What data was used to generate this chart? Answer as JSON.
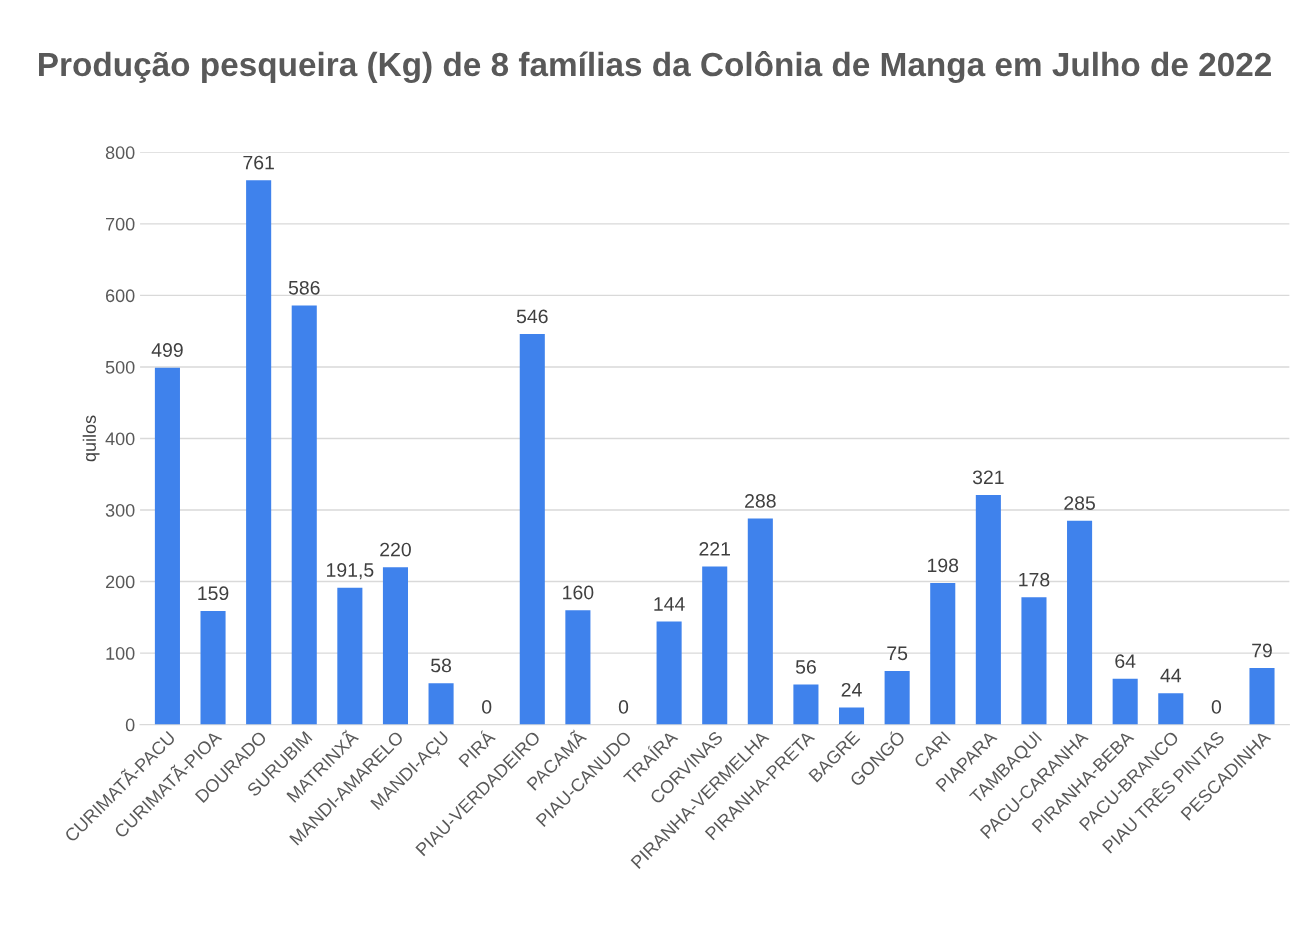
{
  "chart_data": {
    "type": "bar",
    "title": "Produção pesqueira (Kg) de 8 famílias da Colônia de Manga em Julho de 2022",
    "ylabel": "quilos",
    "categories": [
      "CURIMATÃ-PACU",
      "CURIMATÃ-PIOA",
      "DOURADO",
      "SURUBIM",
      "MATRINXÃ",
      "MANDI-AMARELO",
      "MANDI-AÇU",
      "PIRÁ",
      "PIAU-VERDADEIRO",
      "PACAMÃ",
      "PIAU-CANUDO",
      "TRAÍRA",
      "CORVINAS",
      "PIRANHA-VERMELHA",
      "PIRANHA-PRETA",
      "BAGRE",
      "GONGÓ",
      "CARI",
      "PIAPARA",
      "TAMBAQUI",
      "PACU-CARANHA",
      "PIRANHA-BEBA",
      "PACU-BRANCO",
      "PIAU TRÊS PINTAS",
      "PESCADINHA"
    ],
    "values": [
      499,
      159,
      761,
      586,
      191.5,
      220,
      58,
      0,
      546,
      160,
      0,
      144,
      221,
      288,
      56,
      24,
      75,
      198,
      321,
      178,
      285,
      64,
      44,
      0,
      79
    ],
    "value_labels": [
      "499",
      "159",
      "761",
      "586",
      "191,5",
      "220",
      "58",
      "0",
      "546",
      "160",
      "0",
      "144",
      "221",
      "288",
      "56",
      "24",
      "75",
      "198",
      "321",
      "178",
      "285",
      "64",
      "44",
      "0",
      "79"
    ],
    "color": "#3f82ec",
    "ylim": [
      0,
      800
    ],
    "yticks": [
      0,
      100,
      200,
      300,
      400,
      500,
      600,
      700,
      800
    ],
    "grid": "y",
    "legend": false
  }
}
